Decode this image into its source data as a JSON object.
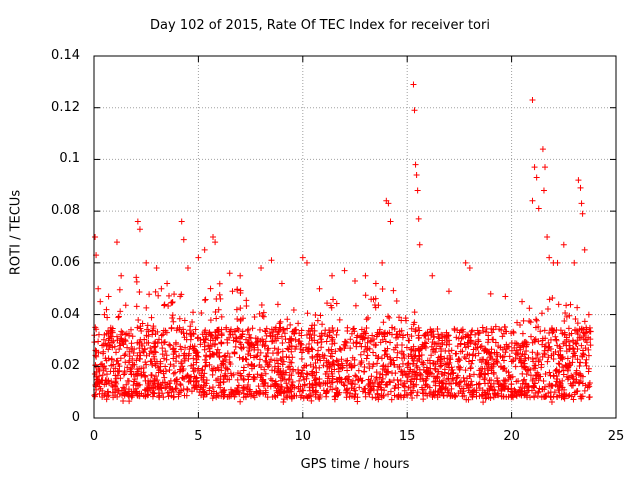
{
  "chart_data": {
    "type": "scatter",
    "title": "Day 102 of 2015, Rate Of TEC Index for receiver tori",
    "xlabel": "GPS time / hours",
    "ylabel": "ROTI / TECUs",
    "xlim": [
      0,
      25
    ],
    "ylim": [
      0,
      0.14
    ],
    "x_ticks": [
      "0",
      "5",
      "10",
      "15",
      "20",
      "25"
    ],
    "y_ticks": [
      "0",
      "0.02",
      "0.04",
      "0.06",
      "0.08",
      "0.1",
      "0.12",
      "0.14"
    ],
    "grid": true,
    "marker": "+",
    "series": [
      {
        "name": "ROTI",
        "color": "#ff0000",
        "points": [
          [
            0.05,
            0.07
          ],
          [
            0.1,
            0.063
          ],
          [
            0.2,
            0.05
          ],
          [
            0.3,
            0.045
          ],
          [
            0.5,
            0.04
          ],
          [
            0.7,
            0.047
          ],
          [
            1.1,
            0.068
          ],
          [
            1.3,
            0.055
          ],
          [
            2.1,
            0.076
          ],
          [
            2.2,
            0.073
          ],
          [
            2.5,
            0.06
          ],
          [
            3.0,
            0.058
          ],
          [
            3.5,
            0.052
          ],
          [
            4.2,
            0.076
          ],
          [
            4.3,
            0.069
          ],
          [
            4.5,
            0.058
          ],
          [
            5.0,
            0.062
          ],
          [
            5.3,
            0.065
          ],
          [
            5.7,
            0.07
          ],
          [
            5.8,
            0.068
          ],
          [
            6.5,
            0.056
          ],
          [
            7.0,
            0.055
          ],
          [
            8.0,
            0.058
          ],
          [
            8.5,
            0.061
          ],
          [
            9.0,
            0.052
          ],
          [
            10.0,
            0.062
          ],
          [
            10.2,
            0.06
          ],
          [
            10.8,
            0.05
          ],
          [
            11.4,
            0.055
          ],
          [
            12.0,
            0.057
          ],
          [
            12.5,
            0.053
          ],
          [
            13.0,
            0.055
          ],
          [
            13.5,
            0.052
          ],
          [
            13.8,
            0.06
          ],
          [
            14.0,
            0.084
          ],
          [
            14.1,
            0.083
          ],
          [
            14.2,
            0.076
          ],
          [
            15.3,
            0.129
          ],
          [
            15.35,
            0.119
          ],
          [
            15.4,
            0.098
          ],
          [
            15.45,
            0.094
          ],
          [
            15.5,
            0.088
          ],
          [
            15.55,
            0.077
          ],
          [
            15.6,
            0.067
          ],
          [
            16.2,
            0.055
          ],
          [
            17.0,
            0.049
          ],
          [
            17.8,
            0.06
          ],
          [
            18.0,
            0.058
          ],
          [
            19.0,
            0.048
          ],
          [
            19.7,
            0.047
          ],
          [
            20.5,
            0.045
          ],
          [
            21.0,
            0.123
          ],
          [
            21.1,
            0.097
          ],
          [
            21.2,
            0.093
          ],
          [
            21.0,
            0.084
          ],
          [
            21.3,
            0.081
          ],
          [
            21.5,
            0.104
          ],
          [
            21.6,
            0.097
          ],
          [
            21.55,
            0.088
          ],
          [
            21.7,
            0.07
          ],
          [
            21.8,
            0.062
          ],
          [
            22.0,
            0.06
          ],
          [
            22.2,
            0.06
          ],
          [
            22.5,
            0.067
          ],
          [
            23.0,
            0.06
          ],
          [
            23.2,
            0.092
          ],
          [
            23.3,
            0.089
          ],
          [
            23.35,
            0.083
          ],
          [
            23.4,
            0.079
          ],
          [
            23.5,
            0.065
          ],
          [
            23.7,
            0.04
          ]
        ],
        "dense_band": {
          "description": "thousands of points concentrated between roughly 0.006 and 0.045 TECUs across 0–23.8 h",
          "x_range": [
            0,
            23.8
          ],
          "y_core_range": [
            0.008,
            0.035
          ],
          "y_upper_envelope": [
            [
              0,
              0.045
            ],
            [
              1,
              0.05
            ],
            [
              2,
              0.055
            ],
            [
              3,
              0.05
            ],
            [
              4,
              0.052
            ],
            [
              5,
              0.05
            ],
            [
              6,
              0.052
            ],
            [
              7,
              0.05
            ],
            [
              8,
              0.048
            ],
            [
              9,
              0.045
            ],
            [
              10,
              0.042
            ],
            [
              11,
              0.045
            ],
            [
              12,
              0.05
            ],
            [
              13,
              0.048
            ],
            [
              14,
              0.052
            ],
            [
              15,
              0.045
            ],
            [
              16,
              0.035
            ],
            [
              17,
              0.032
            ],
            [
              18,
              0.034
            ],
            [
              19,
              0.036
            ],
            [
              20,
              0.035
            ],
            [
              21,
              0.045
            ],
            [
              22,
              0.048
            ],
            [
              23,
              0.045
            ],
            [
              23.8,
              0.04
            ]
          ]
        }
      }
    ]
  }
}
